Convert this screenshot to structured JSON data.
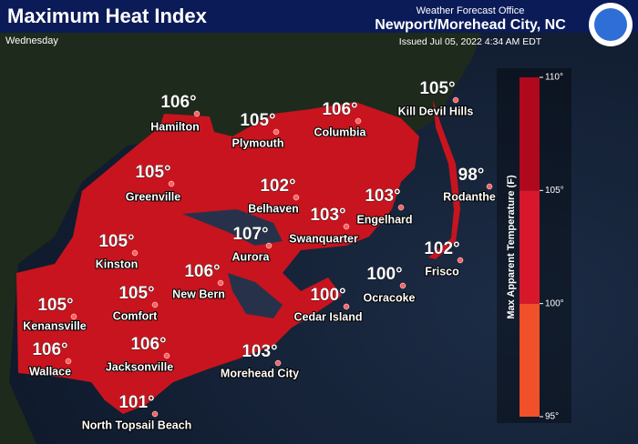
{
  "header": {
    "title": "Maximum Heat Index",
    "day": "Wednesday",
    "office": "Weather Forecast Office",
    "location": "Newport/Morehead City, NC",
    "issued": "Issued Jul 05, 2022 4:34 AM EDT"
  },
  "cities": [
    {
      "name": "Hamilton",
      "value": 106,
      "label": "106°"
    },
    {
      "name": "Plymouth",
      "value": 105,
      "label": "105°"
    },
    {
      "name": "Columbia",
      "value": 106,
      "label": "106°"
    },
    {
      "name": "Kill Devil Hills",
      "value": 105,
      "label": "105°"
    },
    {
      "name": "Greenville",
      "value": 105,
      "label": "105°"
    },
    {
      "name": "Belhaven",
      "value": 102,
      "label": "102°"
    },
    {
      "name": "Engelhard",
      "value": 103,
      "label": "103°"
    },
    {
      "name": "Rodanthe",
      "value": 98,
      "label": "98°"
    },
    {
      "name": "Swanquarter",
      "value": 103,
      "label": "103°"
    },
    {
      "name": "Kinston",
      "value": 105,
      "label": "105°"
    },
    {
      "name": "Aurora",
      "value": 107,
      "label": "107°"
    },
    {
      "name": "New Bern",
      "value": 106,
      "label": "106°"
    },
    {
      "name": "Frisco",
      "value": 102,
      "label": "102°"
    },
    {
      "name": "Ocracoke",
      "value": 100,
      "label": "100°"
    },
    {
      "name": "Kenansville",
      "value": 105,
      "label": "105°"
    },
    {
      "name": "Comfort",
      "value": 105,
      "label": "105°"
    },
    {
      "name": "Cedar Island",
      "value": 100,
      "label": "100°"
    },
    {
      "name": "Wallace",
      "value": 106,
      "label": "106°"
    },
    {
      "name": "Jacksonville",
      "value": 106,
      "label": "106°"
    },
    {
      "name": "Morehead City",
      "value": 103,
      "label": "103°"
    },
    {
      "name": "North Topsail Beach",
      "value": 101,
      "label": "101°"
    }
  ],
  "legend": {
    "title": "Max Apparent Temperature (F)",
    "lim": [
      95,
      110
    ],
    "ticks": [
      {
        "value": 110,
        "label": "110°"
      },
      {
        "value": 105,
        "label": "105°"
      },
      {
        "value": 100,
        "label": "100°"
      },
      {
        "value": 95,
        "label": "95°"
      }
    ],
    "bands": [
      {
        "from": 95,
        "to": 100,
        "color": "#f0502a"
      },
      {
        "from": 100,
        "to": 105,
        "color": "#d8162c"
      },
      {
        "from": 105,
        "to": 110,
        "color": "#b0081c"
      }
    ]
  }
}
